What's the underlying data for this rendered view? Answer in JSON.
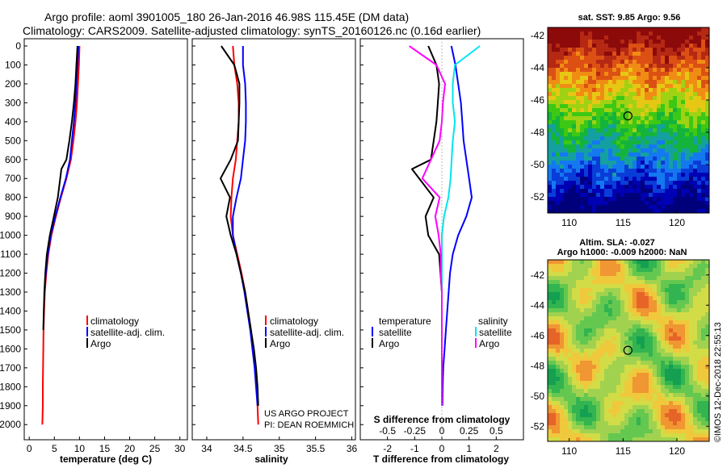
{
  "header": {
    "title_line1": "Argo profile: aoml 3901005_180 26-Jan-2016 46.98S 115.45E (DM data)",
    "title_line2": "Climatology: CARS2009. Satellite-adjusted climatology: synTS_20160126.nc (0.16d earlier)"
  },
  "colors": {
    "climatology": "#ff0000",
    "satellite": "#0000ff",
    "argo": "#000000",
    "sal_satellite": "#00e5ee",
    "sal_argo": "#ff00ff",
    "marker": "#000000"
  },
  "depth_ticks": [
    "0",
    "100",
    "200",
    "300",
    "400",
    "500",
    "600",
    "700",
    "800",
    "900",
    "1000",
    "1100",
    "1200",
    "1300",
    "1400",
    "1500",
    "1600",
    "1700",
    "1800",
    "1900",
    "2000"
  ],
  "panels": {
    "temperature": {
      "xlabel": "temperature (deg C)",
      "xticks": [
        "0",
        "5",
        "10",
        "15",
        "20",
        "25",
        "30"
      ],
      "legend": [
        "climatology",
        "satellite-adj. clim.",
        "Argo"
      ]
    },
    "salinity": {
      "xlabel": "salinity",
      "xticks": [
        "34",
        "34.5",
        "35",
        "35.5",
        "36"
      ],
      "legend": [
        "climatology",
        "satellite-adj. clim.",
        "Argo"
      ],
      "credit_line1": "US ARGO PROJECT",
      "credit_line2": "PI: DEAN ROEMMICH"
    },
    "difference": {
      "xlabel": "T difference from climatology",
      "xticks": [
        "-2",
        "-1",
        "0",
        "1",
        "2"
      ],
      "s_label": "S difference from climatology",
      "s_ticks": [
        "-0.5",
        "-0.25",
        "0",
        "0.25",
        "0.5"
      ],
      "t_legend_title": "temperature",
      "t_legend": [
        "satellite",
        "Argo"
      ],
      "s_legend_title": "salinity",
      "s_legend": [
        "satellite",
        "Argo"
      ]
    }
  },
  "maps": {
    "sst_title": "sat. SST: 9.85 Argo: 9.56",
    "sla_title_1": "Altim. SLA: -0.027",
    "sla_title_2": "Argo h1000: -0.009 h2000: NaN",
    "lat_ticks": [
      "-42",
      "-44",
      "-46",
      "-48",
      "-50",
      "-52"
    ],
    "lon_ticks": [
      "110",
      "115",
      "120"
    ],
    "watermark": "©IMOS 12-Dec-2018 22:55:13"
  },
  "chart_data": [
    {
      "type": "line",
      "xlabel": "temperature (deg C)",
      "ylabel": "",
      "xlim": [
        -1,
        31.5
      ],
      "ylim": [
        2080,
        0
      ],
      "y_reversed": true,
      "series": [
        {
          "name": "climatology",
          "x": [
            10.0,
            9.9,
            9.7,
            9.5,
            9.2,
            8.8,
            8.3,
            7.4,
            6.3,
            5.3,
            4.4,
            3.8,
            3.4,
            3.1,
            2.95,
            2.85,
            2.8,
            2.75,
            2.7,
            2.7,
            2.6
          ],
          "y": [
            0,
            100,
            200,
            300,
            400,
            500,
            600,
            700,
            800,
            900,
            1000,
            1100,
            1200,
            1300,
            1400,
            1500,
            1600,
            1700,
            1800,
            1900,
            2000
          ]
        },
        {
          "name": "satellite-adj. clim.",
          "x": [
            9.8,
            9.6,
            9.4,
            9.2,
            8.9,
            8.5,
            8.1,
            7.3,
            6.2,
            5.2,
            4.3,
            3.7,
            3.3,
            3.0
          ],
          "y": [
            0,
            100,
            200,
            300,
            400,
            500,
            600,
            700,
            800,
            900,
            1000,
            1100,
            1200,
            1300
          ]
        },
        {
          "name": "Argo",
          "x": [
            9.6,
            9.4,
            9.2,
            8.9,
            8.5,
            8.0,
            7.4,
            6.4,
            5.7,
            4.9,
            4.1,
            3.5,
            3.2,
            3.0,
            2.9,
            2.8
          ],
          "y": [
            0,
            100,
            200,
            300,
            400,
            500,
            600,
            650,
            800,
            900,
            1000,
            1100,
            1200,
            1300,
            1400,
            1500
          ]
        }
      ]
    },
    {
      "type": "line",
      "xlabel": "salinity",
      "ylabel": "",
      "xlim": [
        33.8,
        36.05
      ],
      "ylim": [
        2080,
        0
      ],
      "y_reversed": true,
      "series": [
        {
          "name": "climatology",
          "x": [
            34.36,
            34.38,
            34.42,
            34.44,
            34.44,
            34.42,
            34.4,
            34.36,
            34.34,
            34.33,
            34.36,
            34.42,
            34.48,
            34.53,
            34.57,
            34.61,
            34.64,
            34.67,
            34.69,
            34.7,
            34.71
          ],
          "y": [
            0,
            100,
            200,
            300,
            400,
            500,
            600,
            700,
            800,
            900,
            1000,
            1100,
            1200,
            1300,
            1400,
            1500,
            1600,
            1700,
            1800,
            1900,
            2000
          ]
        },
        {
          "name": "satellite-adj. clim.",
          "x": [
            34.5,
            34.5,
            34.53,
            34.54,
            34.54,
            34.53,
            34.5,
            34.47,
            34.41,
            34.36,
            34.36,
            34.41,
            34.47,
            34.52,
            34.56,
            34.6,
            34.63,
            34.66,
            34.68,
            34.7
          ],
          "y": [
            0,
            100,
            200,
            300,
            400,
            500,
            600,
            700,
            800,
            900,
            1000,
            1100,
            1200,
            1300,
            1400,
            1500,
            1600,
            1700,
            1800,
            1900
          ]
        },
        {
          "name": "Argo",
          "x": [
            34.2,
            34.38,
            34.45,
            34.45,
            34.44,
            34.43,
            34.33,
            34.19,
            34.32,
            34.27,
            34.33,
            34.41,
            34.47,
            34.53,
            34.57,
            34.61,
            34.65,
            34.68,
            34.7,
            34.71
          ],
          "y": [
            0,
            100,
            200,
            300,
            400,
            500,
            600,
            700,
            800,
            900,
            1000,
            1100,
            1200,
            1300,
            1400,
            1500,
            1600,
            1700,
            1800,
            1900
          ]
        }
      ]
    },
    {
      "type": "line",
      "xlabel": "T difference from climatology",
      "x2label": "S difference from climatology",
      "xlim": [
        -3,
        3
      ],
      "x2lim": [
        -0.75,
        0.75
      ],
      "ylim": [
        2080,
        0
      ],
      "y_reversed": true,
      "series": [
        {
          "name": "temperature satellite",
          "axis": "T",
          "x": [
            0.35,
            0.5,
            0.6,
            0.7,
            0.75,
            0.8,
            0.9,
            1.0,
            1.1,
            0.9,
            0.6,
            0.4,
            0.3,
            0.25,
            0.2,
            0.15,
            0.1,
            0.05,
            0.03,
            0.02
          ],
          "y": [
            0,
            100,
            200,
            300,
            400,
            500,
            600,
            700,
            800,
            900,
            1000,
            1100,
            1200,
            1300,
            1400,
            1500,
            1600,
            1700,
            1800,
            1900
          ]
        },
        {
          "name": "temperature Argo",
          "axis": "T",
          "x": [
            -0.5,
            -0.2,
            -0.1,
            -0.15,
            -0.2,
            -0.3,
            -0.4,
            -1.1,
            -0.3,
            -0.6,
            -0.5,
            -0.1,
            -0.05,
            0.0,
            0.0,
            0.0,
            0.0,
            0.0,
            0.0
          ],
          "y": [
            0,
            100,
            200,
            300,
            400,
            500,
            600,
            650,
            800,
            900,
            1000,
            1100,
            1200,
            1300,
            1400,
            1500,
            1600,
            1700,
            1800
          ]
        },
        {
          "name": "salinity satellite",
          "axis": "S",
          "x": [
            0.35,
            0.12,
            0.1,
            0.1,
            0.12,
            0.1,
            0.09,
            0.08,
            0.06,
            0.02,
            0.0,
            0.0,
            0.0,
            0.0,
            0.0,
            0.0,
            0.0,
            0.0,
            0.0,
            0.0
          ],
          "y": [
            0,
            100,
            200,
            300,
            400,
            500,
            600,
            700,
            800,
            900,
            1000,
            1100,
            1200,
            1300,
            1400,
            1500,
            1600,
            1700,
            1800,
            1900
          ]
        },
        {
          "name": "salinity Argo",
          "axis": "S",
          "x": [
            -0.3,
            -0.05,
            0.03,
            0.01,
            0.0,
            -0.02,
            -0.1,
            -0.18,
            -0.02,
            -0.06,
            -0.03,
            -0.01,
            -0.01,
            0.0,
            0.0,
            0.0,
            0.0,
            0.0,
            0.0,
            0.0
          ],
          "y": [
            0,
            100,
            200,
            300,
            400,
            500,
            600,
            700,
            800,
            900,
            1000,
            1100,
            1200,
            1300,
            1400,
            1500,
            1600,
            1700,
            1800,
            1900
          ]
        }
      ]
    },
    {
      "type": "heatmap",
      "title": "sat. SST: 9.85 Argo: 9.56",
      "xlim": [
        108,
        123
      ],
      "ylim": [
        -53,
        -41.5
      ],
      "xticks": [
        110,
        115,
        120
      ],
      "yticks": [
        -42,
        -44,
        -46,
        -48,
        -50,
        -52
      ],
      "marker": {
        "lon": 115.45,
        "lat": -46.98
      }
    },
    {
      "type": "heatmap",
      "title": "Altim. SLA: -0.027",
      "xlim": [
        108,
        123
      ],
      "ylim": [
        -53,
        -41
      ],
      "xticks": [
        110,
        115,
        120
      ],
      "yticks": [
        -42,
        -44,
        -46,
        -48,
        -50,
        -52
      ],
      "marker": {
        "lon": 115.45,
        "lat": -46.98
      }
    }
  ]
}
